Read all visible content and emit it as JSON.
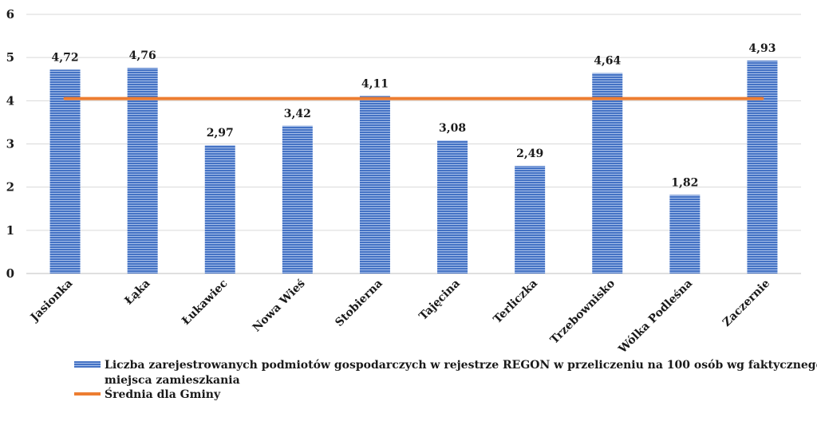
{
  "chart_data": {
    "type": "bar",
    "categories": [
      "Jasionka",
      "Łąka",
      "Łukawiec",
      "Nowa Wieś",
      "Stobierna",
      "Tajęcina",
      "Terliczka",
      "Trzebownisko",
      "Wólka Podleśna",
      "Zaczernie"
    ],
    "series": [
      {
        "name": "Liczba zarejestrowanych podmiotów gospodarczych w rejestrze REGON w przeliczeniu na 100 osób wg faktycznego miejsca zamieszkania",
        "type": "bar",
        "values": [
          4.72,
          4.76,
          2.97,
          3.42,
          4.11,
          3.08,
          2.49,
          4.64,
          1.82,
          4.93
        ],
        "labels": [
          "4,72",
          "4,76",
          "2,97",
          "3,42",
          "4,11",
          "3,08",
          "2,49",
          "4,64",
          "1,82",
          "4,93"
        ],
        "color": "#4472c4"
      },
      {
        "name": "Średnia dla Gminy",
        "type": "line",
        "value": 4.05,
        "color": "#ed7d31"
      }
    ],
    "ylim": [
      0,
      6
    ],
    "yticks": [
      "0",
      "1",
      "2",
      "3",
      "4",
      "5",
      "6"
    ],
    "grid": true,
    "legend": "bottom",
    "legend_lines": [
      "Liczba zarejestrowanych podmiotów gospodarczych w rejestrze REGON w przeliczeniu na 100 osób wg faktycznego",
      "miejsca zamieszkania"
    ]
  }
}
